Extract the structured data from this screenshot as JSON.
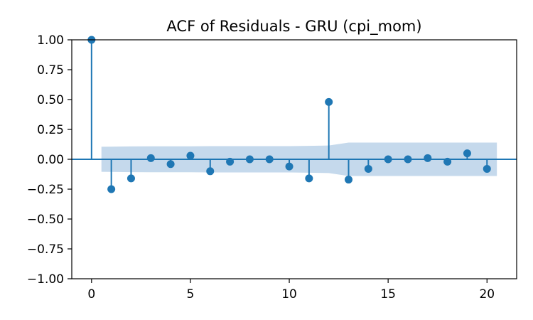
{
  "chart_data": {
    "type": "stem",
    "title": "ACF of Residuals - GRU (cpi_mom)",
    "xlabel": "",
    "ylabel": "",
    "xlim": [
      -1,
      21.5
    ],
    "ylim": [
      -1.0,
      1.0
    ],
    "x_ticks": [
      0,
      5,
      10,
      15,
      20
    ],
    "x_tick_labels": [
      "0",
      "5",
      "10",
      "15",
      "20"
    ],
    "y_ticks": [
      1.0,
      0.75,
      0.5,
      0.25,
      0.0,
      -0.25,
      -0.5,
      -0.75,
      -1.0
    ],
    "y_tick_labels": [
      "1.00",
      "0.75",
      "0.50",
      "0.25",
      "0.00",
      "−0.25",
      "−0.50",
      "−0.75",
      "−1.00"
    ],
    "lags": [
      0,
      1,
      2,
      3,
      4,
      5,
      6,
      7,
      8,
      9,
      10,
      11,
      12,
      13,
      14,
      15,
      16,
      17,
      18,
      19,
      20
    ],
    "acf": [
      1.0,
      -0.25,
      -0.16,
      0.01,
      -0.04,
      0.03,
      -0.1,
      -0.02,
      0.0,
      0.0,
      -0.06,
      -0.16,
      0.48,
      -0.17,
      -0.08,
      0.0,
      0.0,
      0.01,
      -0.02,
      0.05,
      -0.08
    ],
    "confint_lags": [
      0.5,
      1,
      2,
      3,
      4,
      5,
      6,
      7,
      8,
      9,
      10,
      11,
      12,
      13,
      14,
      15,
      16,
      17,
      18,
      19,
      20,
      20.5
    ],
    "confint_upper": [
      0.105,
      0.106,
      0.108,
      0.109,
      0.109,
      0.109,
      0.11,
      0.11,
      0.11,
      0.11,
      0.11,
      0.112,
      0.115,
      0.14,
      0.14,
      0.14,
      0.14,
      0.14,
      0.14,
      0.14,
      0.14,
      0.14
    ],
    "grid": false,
    "legend": "none",
    "colors": {
      "stem": "#1f77b4",
      "confint": "#c5d9ec",
      "baseline": "#1f77b4",
      "axes": "#000000"
    }
  }
}
